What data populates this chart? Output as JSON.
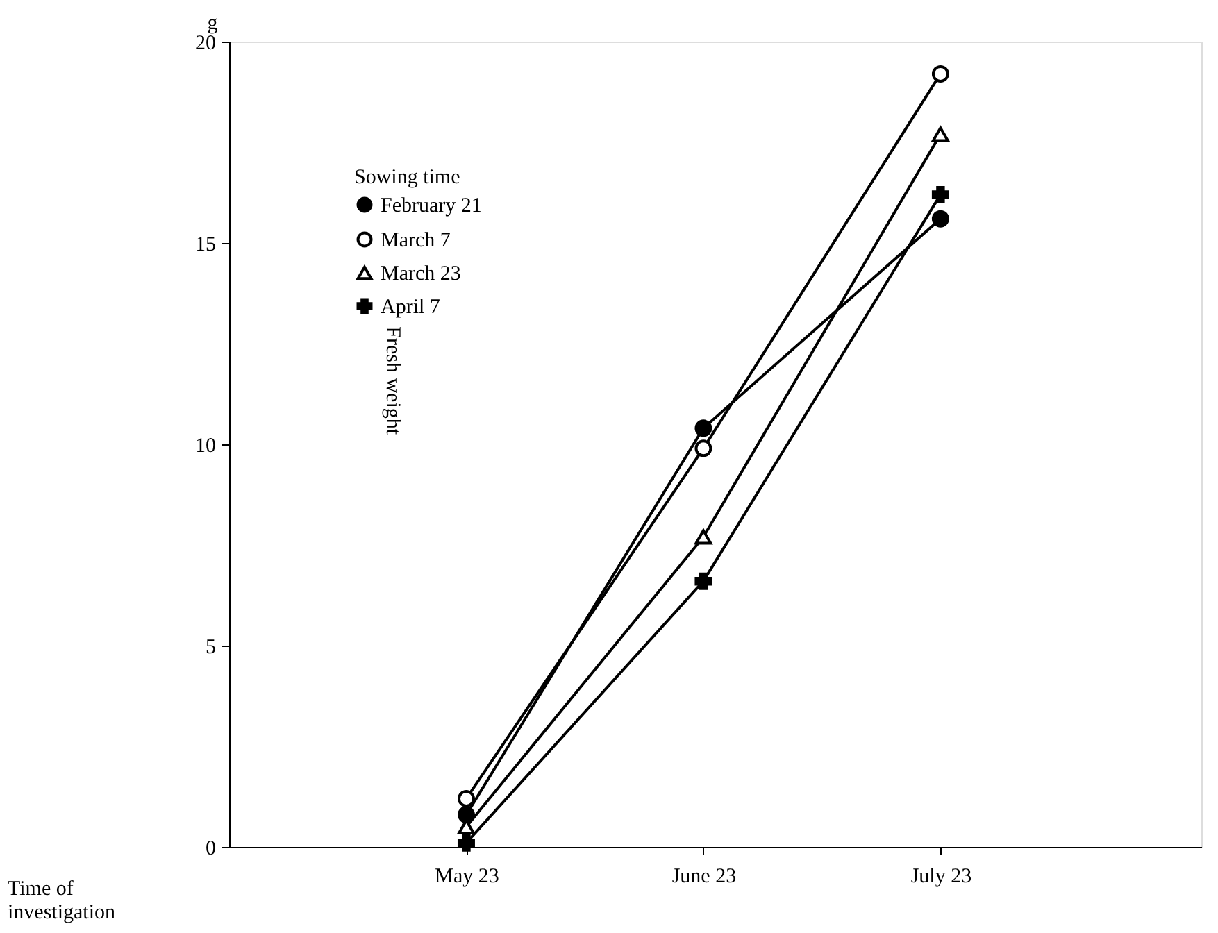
{
  "chart_data": {
    "type": "line",
    "xlabel": "Time of investigation",
    "ylabel": "Fresh weight",
    "legend_title": "Sowing time",
    "categories": [
      "May 23",
      "June 23",
      "July 23"
    ],
    "series": [
      {
        "name": "February 21",
        "color": "#000000",
        "marker": "circle",
        "values": [
          0.8,
          10.4,
          15.6
        ]
      },
      {
        "name": "March 7",
        "color": "#000000",
        "marker": "open circle",
        "values": [
          1.2,
          9.9,
          19.2
        ]
      },
      {
        "name": "March 23",
        "color": "#000000",
        "marker": "triangle",
        "values": [
          0.5,
          7.7,
          17.7
        ]
      },
      {
        "name": "April 7",
        "color": "#000000",
        "marker": "cross",
        "values": [
          0.1,
          6.6,
          16.2
        ]
      }
    ],
    "ylim": [
      0,
      20
    ],
    "yticks": [
      0,
      5,
      10,
      15,
      20
    ],
    "grid": false,
    "legend": "top left",
    "line_style": "solid",
    "annotations": [
      "g"
    ]
  }
}
